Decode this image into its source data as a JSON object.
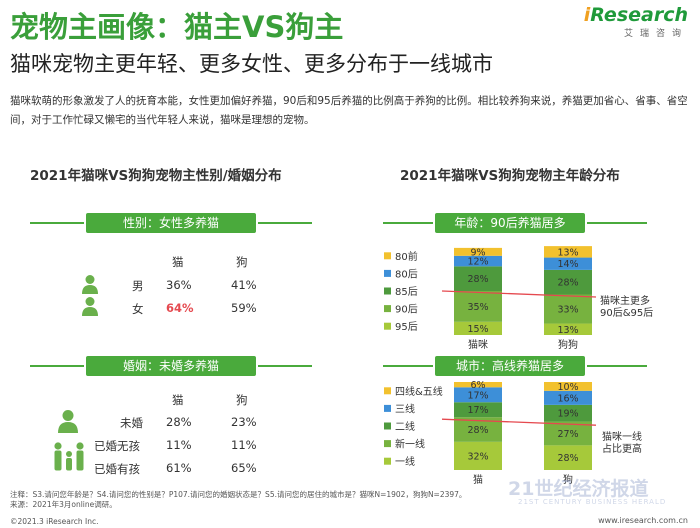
{
  "header": {
    "title": "宠物主画像：猫主VS狗主",
    "subtitle": "猫咪宠物主更年轻、更多女性、更多分布于一线城市",
    "logo_i": "i",
    "logo_rest": "Research",
    "logo_sub": "艾瑞咨询"
  },
  "intro": "猫咪软萌的形象激发了人的抚育本能，女性更加偏好养猫，90后和95后养猫的比例高于养狗的比例。相比较养狗来说，养猫更加省心、省事、省空间，对于工作忙碌又懒宅的当代年轻人来说，猫咪是理想的宠物。",
  "left_panel": {
    "title": "2021年猫咪VS狗狗宠物主性别/婚姻分布",
    "gender": {
      "badge": "性别：女性多养猫",
      "col_cat": "猫",
      "col_dog": "狗",
      "rows": [
        {
          "label": "男",
          "cat": "36%",
          "dog": "41%"
        },
        {
          "label": "女",
          "cat": "64%",
          "dog": "59%"
        }
      ]
    },
    "marriage": {
      "badge": "婚姻：未婚多养猫",
      "col_cat": "猫",
      "col_dog": "狗",
      "rows": [
        {
          "label": "未婚",
          "cat": "28%",
          "dog": "23%"
        },
        {
          "label": "已婚无孩",
          "cat": "11%",
          "dog": "11%"
        },
        {
          "label": "已婚有孩",
          "cat": "61%",
          "dog": "65%"
        }
      ]
    }
  },
  "right_panel": {
    "title": "2021年猫咪VS狗狗宠物主年龄分布",
    "age_badge": "年龄：90后养猫居多",
    "city_badge": "城市：高线养猫居多"
  },
  "chart_data": [
    {
      "type": "bar",
      "stacked": true,
      "title": "年龄：90后养猫居多",
      "categories": [
        "猫咪",
        "狗狗"
      ],
      "series": [
        {
          "name": "95后",
          "values": [
            15,
            13
          ],
          "color": "#a6c93a"
        },
        {
          "name": "90后",
          "values": [
            35,
            33
          ],
          "color": "#77b23f"
        },
        {
          "name": "85后",
          "values": [
            28,
            28
          ],
          "color": "#4e9a3d"
        },
        {
          "name": "80后",
          "values": [
            12,
            14
          ],
          "color": "#3d8fd8"
        },
        {
          "name": "80前",
          "values": [
            9,
            13
          ],
          "color": "#f2c12e"
        }
      ],
      "value_labels": {
        "95后": [
          "15%",
          "13%"
        ],
        "90后": [
          "35%",
          "33%"
        ],
        "85后": [
          "28%",
          "28%"
        ],
        "80后": [
          "12%",
          "14%"
        ],
        "80前": [
          "9%",
          "13%"
        ]
      },
      "legend_order": [
        "80前",
        "80后",
        "85后",
        "90后",
        "95后"
      ],
      "annotation": "猫咪主更多\n90后&95后",
      "ylim": [
        0,
        100
      ]
    },
    {
      "type": "bar",
      "stacked": true,
      "title": "城市：高线养猫居多",
      "categories": [
        "猫",
        "狗"
      ],
      "series": [
        {
          "name": "一线",
          "values": [
            32,
            28
          ],
          "color": "#a6c93a"
        },
        {
          "name": "新一线",
          "values": [
            28,
            27
          ],
          "color": "#77b23f"
        },
        {
          "name": "二线",
          "values": [
            17,
            19
          ],
          "color": "#4e9a3d"
        },
        {
          "name": "三线",
          "values": [
            17,
            16
          ],
          "color": "#3d8fd8"
        },
        {
          "name": "四线&五线",
          "values": [
            6,
            10
          ],
          "color": "#f2c12e"
        }
      ],
      "value_labels": {
        "一线": [
          "32%",
          "28%"
        ],
        "新一线": [
          "28%",
          "27%"
        ],
        "二线": [
          "17%",
          "19%"
        ],
        "三线": [
          "17%",
          "16%"
        ],
        "四线&五线": [
          "6%",
          "10%"
        ]
      },
      "legend_order": [
        "四线&五线",
        "三线",
        "二线",
        "新一线",
        "一线"
      ],
      "annotation": "猫咪一线\n占比更高",
      "ylim": [
        0,
        100
      ]
    }
  ],
  "footer": {
    "note_line1": "注释：S3.请问您年龄是？S4.请问您的性别是？P107.请问您的婚姻状态是？S5.请问您的居住的城市是？猫咪N=1902，狗狗N=2397。",
    "note_line2": "来源：2021年3月online调研。",
    "copyright": "©2021.3 iResearch Inc.",
    "website": "www.iresearch.com.cn",
    "watermark": "21世纪经济报道",
    "watermark_sub": "21ST CENTURY BUSINESS HERALD"
  },
  "colors": {
    "green": "#4aaa3c",
    "title_green": "#3a9f3a",
    "highlight_red": "#e5494f",
    "icon_green": "#6ab04c"
  }
}
